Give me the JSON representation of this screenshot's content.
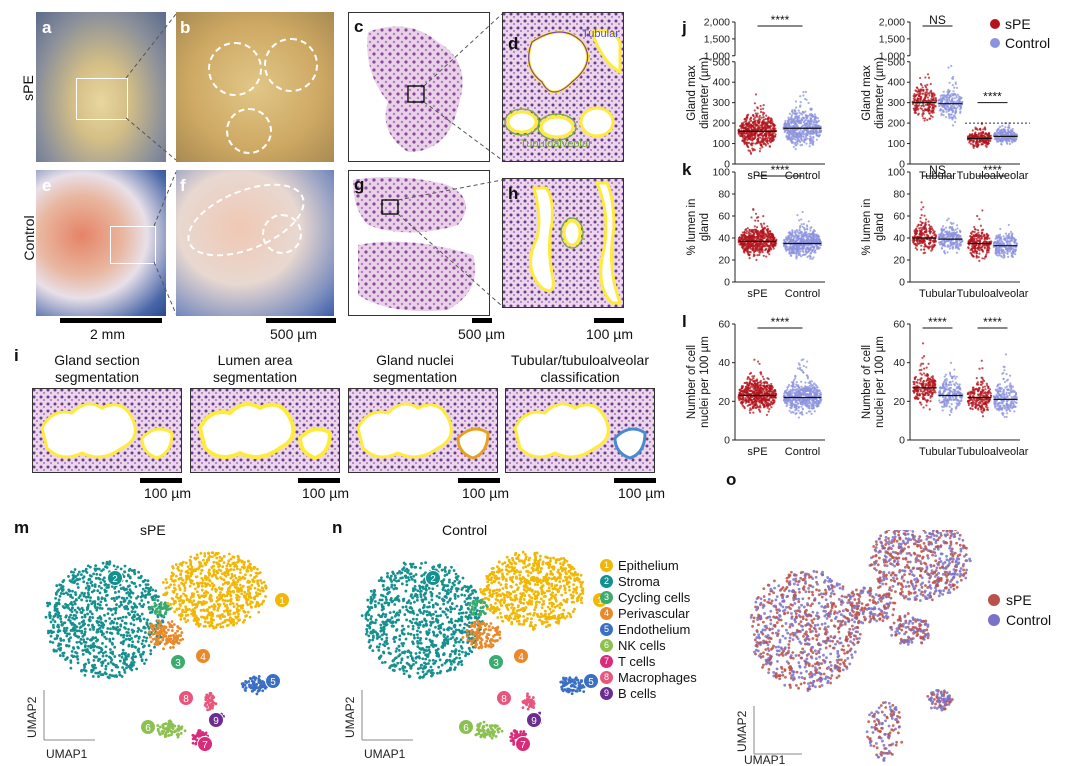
{
  "panels": {
    "a": "a",
    "b": "b",
    "c": "c",
    "d": "d",
    "e": "e",
    "f": "f",
    "g": "g",
    "h": "h",
    "i": "i",
    "j": "j",
    "k": "k",
    "l": "l",
    "m": "m",
    "n": "n",
    "o": "o"
  },
  "rows": {
    "spe": "sPE",
    "control": "Control"
  },
  "scalebars": {
    "s1": "2 mm",
    "s2": "500 µm",
    "s3": "500 µm",
    "s4": "100 µm",
    "i1": "100 µm",
    "i2": "100 µm",
    "i3": "100 µm",
    "i4": "100 µm"
  },
  "histo_labels": {
    "tubular": "Tubular",
    "tubuloalveolar": "Tubuloalveolar"
  },
  "panel_i": {
    "titles": [
      "Gland section segmentation",
      "Lumen area segmentation",
      "Gland nuclei segmentation",
      "Tubular/tubuloalveolar classification"
    ]
  },
  "legend_jkl": {
    "spe": "sPE",
    "control": "Control",
    "colors": {
      "spe": "#b3141c",
      "control": "#8c93de"
    }
  },
  "umap": {
    "m_title": "sPE",
    "n_title": "Control",
    "axis_x": "UMAP1",
    "axis_y": "UMAP2",
    "clusters": [
      {
        "num": "1",
        "name": "Epithelium",
        "color": "#f2b705"
      },
      {
        "num": "2",
        "name": "Stroma",
        "color": "#168f8f"
      },
      {
        "num": "3",
        "name": "Cycling cells",
        "color": "#3cab6e"
      },
      {
        "num": "4",
        "name": "Perivascular",
        "color": "#e8892b"
      },
      {
        "num": "5",
        "name": "Endothelium",
        "color": "#3b6fc4"
      },
      {
        "num": "6",
        "name": "NK cells",
        "color": "#8cc050"
      },
      {
        "num": "7",
        "name": "T cells",
        "color": "#d92b7a"
      },
      {
        "num": "8",
        "name": "Macrophages",
        "color": "#e8557d"
      },
      {
        "num": "9",
        "name": "B cells",
        "color": "#6b2d8f"
      }
    ],
    "o_legend": [
      {
        "name": "sPE",
        "color": "#b8524a"
      },
      {
        "name": "Control",
        "color": "#7a72c8"
      }
    ]
  },
  "chart_data": [
    {
      "id": "j-left",
      "type": "scatter",
      "ylabel": "Gland max diameter (µm)",
      "yticks_low": [
        "0",
        "100",
        "200",
        "300",
        "400",
        "500"
      ],
      "yticks_high": [
        "1,000",
        "1,500",
        "2,000"
      ],
      "categories": [
        "sPE",
        "Control"
      ],
      "medians": [
        160,
        175
      ],
      "significance": "****"
    },
    {
      "id": "j-right",
      "type": "scatter",
      "ylabel": "Gland max diameter (µm)",
      "yticks_low": [
        "0",
        "100",
        "200",
        "300",
        "400",
        "500"
      ],
      "yticks_high": [
        "1,000",
        "1,500",
        "2,000"
      ],
      "categories": [
        "Tubular",
        "Tubuloalveolar"
      ],
      "threshold": 200,
      "medians": [
        [
          300,
          295
        ],
        [
          125,
          135
        ]
      ],
      "significance": [
        "NS",
        "****"
      ]
    },
    {
      "id": "k-left",
      "type": "scatter",
      "ylabel": "% lumen in gland",
      "ylim": [
        0,
        100
      ],
      "yticks": [
        "0",
        "20",
        "40",
        "60",
        "80",
        "100"
      ],
      "categories": [
        "sPE",
        "Control"
      ],
      "medians": [
        37,
        35
      ],
      "significance": "****"
    },
    {
      "id": "k-right",
      "type": "scatter",
      "ylabel": "% lumen in gland",
      "ylim": [
        0,
        100
      ],
      "yticks": [
        "0",
        "20",
        "40",
        "60",
        "80",
        "100"
      ],
      "categories": [
        "Tubular",
        "Tubuloalveolar"
      ],
      "medians": [
        [
          40,
          39
        ],
        [
          35,
          33
        ]
      ],
      "significance": [
        "NS",
        "****"
      ]
    },
    {
      "id": "l-left",
      "type": "scatter",
      "ylabel": "Number of cell nuclei per 100 µm",
      "ylim": [
        0,
        60
      ],
      "yticks": [
        "0",
        "20",
        "40",
        "60"
      ],
      "categories": [
        "sPE",
        "Control"
      ],
      "medians": [
        23,
        22
      ],
      "significance": "****"
    },
    {
      "id": "l-right",
      "type": "scatter",
      "ylabel": "Number of cell nuclei per 100 µm",
      "ylim": [
        0,
        60
      ],
      "yticks": [
        "0",
        "20",
        "40",
        "60"
      ],
      "categories": [
        "Tubular",
        "Tubuloalveolar"
      ],
      "medians": [
        [
          27,
          23
        ],
        [
          22,
          21
        ]
      ],
      "significance": [
        "****",
        "****"
      ]
    }
  ]
}
